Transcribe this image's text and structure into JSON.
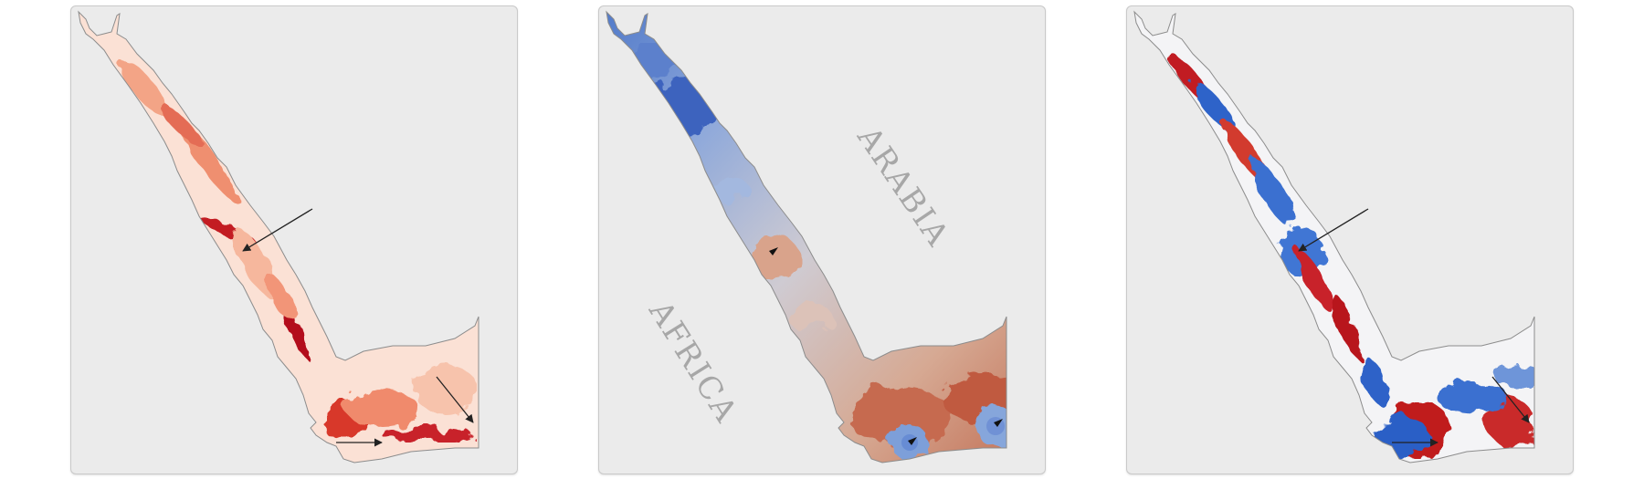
{
  "panels": [
    {
      "id": "panel-1",
      "colormap": "reds",
      "arrows": 3
    },
    {
      "id": "panel-2",
      "colormap": "diverging-blue-red",
      "markers": 3
    },
    {
      "id": "panel-3",
      "colormap": "diverging-blue-red",
      "arrows": 3
    }
  ],
  "labels": {
    "arabia": "ARABIA",
    "africa": "AFRICA"
  },
  "colors": {
    "panel_background": "#ebebeb",
    "land_outline": "#8c8c8c",
    "arrow": "#222222",
    "deep_red": "#b8001f",
    "deep_blue": "#2b5fc6",
    "label": "#a7a7a7"
  }
}
